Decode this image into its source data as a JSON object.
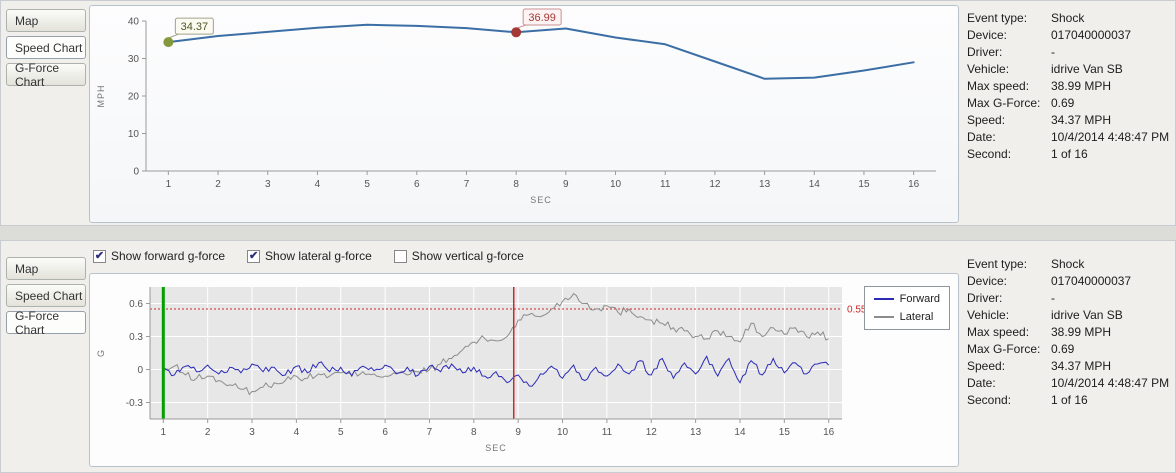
{
  "tabs": {
    "items": [
      "Map",
      "Speed Chart",
      "G-Force Chart"
    ]
  },
  "top_panel": {
    "selected_tab": "Speed Chart"
  },
  "bottom_panel": {
    "selected_tab": "G-Force Chart",
    "checkboxes": [
      {
        "label": "Show forward g-force",
        "checked": true
      },
      {
        "label": "Show lateral g-force",
        "checked": true
      },
      {
        "label": "Show vertical g-force",
        "checked": false
      }
    ]
  },
  "info": {
    "rows": [
      {
        "label": "Event type:",
        "value": "Shock"
      },
      {
        "label": "Device:",
        "value": "017040000037"
      },
      {
        "label": "Driver:",
        "value": "-"
      },
      {
        "label": "Vehicle:",
        "value": "idrive Van SB"
      },
      {
        "label": "Max speed:",
        "value": "38.99 MPH"
      },
      {
        "label": "Max G-Force:",
        "value": "0.69"
      },
      {
        "label": "Speed:",
        "value": "34.37 MPH"
      },
      {
        "label": "Date:",
        "value": "10/4/2014 4:48:47 PM"
      },
      {
        "label": "Second:",
        "value": "1 of 16"
      }
    ]
  },
  "chart_data": [
    {
      "type": "line",
      "title": "Speed Chart",
      "xlabel": "SEC",
      "ylabel": "MPH",
      "xlim": [
        0.55,
        16.45
      ],
      "ylim": [
        0,
        40
      ],
      "xticks": [
        1,
        2,
        3,
        4,
        5,
        6,
        7,
        8,
        9,
        10,
        11,
        12,
        13,
        14,
        15,
        16
      ],
      "yticks": [
        0,
        10,
        20,
        30,
        40
      ],
      "x": [
        1,
        2,
        3,
        4,
        5,
        6,
        7,
        8,
        9,
        10,
        11,
        12,
        13,
        14,
        15,
        16
      ],
      "values": [
        34.37,
        36.0,
        37.1,
        38.2,
        38.99,
        38.7,
        38.1,
        36.99,
        38.0,
        35.6,
        33.8,
        29.2,
        24.6,
        24.9,
        26.8,
        29.0
      ],
      "line_color": "#3A6EA5",
      "markers": [
        {
          "x": 1,
          "y": 34.37,
          "label": "34.37",
          "color": "#84993E",
          "label_bg": "#FBFBF1",
          "label_border": "#A2A28C",
          "label_color": "#4A5526"
        },
        {
          "x": 8,
          "y": 36.99,
          "label": "36.99",
          "color": "#A33A35",
          "label_bg": "#FDF3F3",
          "label_border": "#C99090",
          "label_color": "#A33A35"
        }
      ]
    },
    {
      "type": "line",
      "title": "G-Force Chart",
      "xlabel": "SEC",
      "ylabel": "G",
      "xlim": [
        0.7,
        16.3
      ],
      "ylim": [
        -0.45,
        0.75
      ],
      "xticks": [
        1,
        2,
        3,
        4,
        5,
        6,
        7,
        8,
        9,
        10,
        11,
        12,
        13,
        14,
        15,
        16
      ],
      "yticks": [
        -0.3,
        0,
        0.3,
        0.6
      ],
      "plot_bg": "#E7E7E7",
      "threshold": {
        "y": 0.55,
        "label": "0.55",
        "color": "#CC2A2A"
      },
      "cursor_lines": [
        {
          "x": 1,
          "color": "#00A000",
          "width": 3
        },
        {
          "x": 8.9,
          "color": "#CC2A2A",
          "width": 1.5
        }
      ],
      "legend": [
        "Forward",
        "Lateral"
      ],
      "series": [
        {
          "name": "Lateral",
          "color": "#8C8C8C",
          "noise": 0.035,
          "x_start": 1,
          "x_step": 0.25,
          "values": [
            -0.02,
            0.03,
            -0.05,
            -0.08,
            -0.06,
            -0.1,
            -0.14,
            -0.18,
            -0.2,
            -0.16,
            -0.12,
            -0.1,
            -0.06,
            -0.08,
            -0.04,
            -0.06,
            -0.03,
            -0.05,
            -0.02,
            -0.04,
            -0.06,
            -0.03,
            -0.05,
            -0.02,
            0,
            0.05,
            0.1,
            0.18,
            0.25,
            0.28,
            0.26,
            0.3,
            0.45,
            0.5,
            0.48,
            0.55,
            0.62,
            0.69,
            0.6,
            0.55,
            0.58,
            0.52,
            0.55,
            0.48,
            0.45,
            0.42,
            0.38,
            0.35,
            0.3,
            0.28,
            0.35,
            0.3,
            0.25,
            0.42,
            0.3,
            0.38,
            0.32,
            0.38,
            0.3,
            0.34,
            0.28
          ]
        },
        {
          "name": "Forward",
          "color": "#2B2BB8",
          "noise": 0.03,
          "x_start": 1,
          "x_step": 0.25,
          "values": [
            0.02,
            -0.05,
            0.03,
            -0.02,
            0.04,
            -0.04,
            0.02,
            -0.03,
            0.05,
            -0.02,
            0.02,
            -0.05,
            0.03,
            -0.03,
            0.06,
            -0.02,
            0.02,
            -0.06,
            0.03,
            -0.01,
            0.04,
            -0.04,
            0.02,
            -0.05,
            0.03,
            -0.02,
            0.05,
            -0.03,
            0.02,
            -0.06,
            -0.02,
            -0.12,
            -0.05,
            -0.15,
            -0.04,
            0.03,
            -0.08,
            0.04,
            -0.1,
            0.02,
            -0.06,
            0.05,
            -0.04,
            0.08,
            -0.05,
            0.1,
            -0.08,
            0.06,
            -0.04,
            0.12,
            -0.06,
            0.1,
            -0.12,
            0.08,
            -0.05,
            0.1,
            -0.03,
            0.06,
            -0.04,
            0.05,
            0.04
          ]
        }
      ]
    }
  ]
}
